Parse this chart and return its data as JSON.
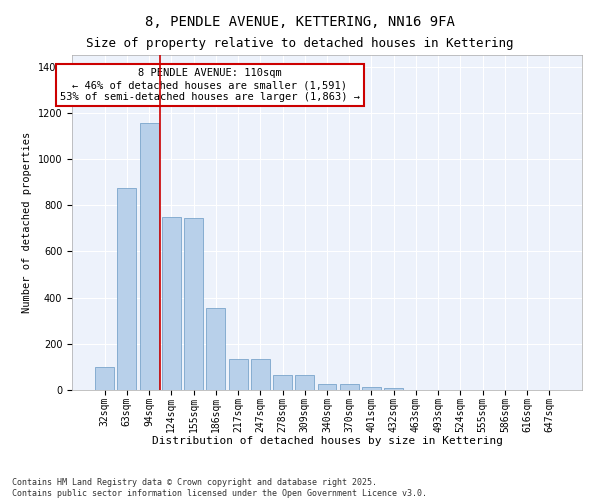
{
  "title1": "8, PENDLE AVENUE, KETTERING, NN16 9FA",
  "title2": "Size of property relative to detached houses in Kettering",
  "xlabel": "Distribution of detached houses by size in Kettering",
  "ylabel": "Number of detached properties",
  "categories": [
    "32sqm",
    "63sqm",
    "94sqm",
    "124sqm",
    "155sqm",
    "186sqm",
    "217sqm",
    "247sqm",
    "278sqm",
    "309sqm",
    "340sqm",
    "370sqm",
    "401sqm",
    "432sqm",
    "463sqm",
    "493sqm",
    "524sqm",
    "555sqm",
    "586sqm",
    "616sqm",
    "647sqm"
  ],
  "values": [
    100,
    875,
    1155,
    750,
    745,
    355,
    135,
    135,
    65,
    65,
    28,
    25,
    15,
    10,
    0,
    0,
    0,
    0,
    0,
    0,
    0
  ],
  "bar_color": "#b8d0ea",
  "bar_edge_color": "#6899c4",
  "vline_x": 2.5,
  "vline_color": "#cc0000",
  "annotation_text": "8 PENDLE AVENUE: 110sqm\n← 46% of detached houses are smaller (1,591)\n53% of semi-detached houses are larger (1,863) →",
  "annotation_box_color": "#cc0000",
  "ylim": [
    0,
    1450
  ],
  "yticks": [
    0,
    200,
    400,
    600,
    800,
    1000,
    1200,
    1400
  ],
  "bg_color": "#edf2fb",
  "footer": "Contains HM Land Registry data © Crown copyright and database right 2025.\nContains public sector information licensed under the Open Government Licence v3.0.",
  "title1_fontsize": 10,
  "title2_fontsize": 9,
  "xlabel_fontsize": 8,
  "ylabel_fontsize": 7.5,
  "tick_fontsize": 7,
  "footer_fontsize": 6,
  "annot_fontsize": 7.5
}
